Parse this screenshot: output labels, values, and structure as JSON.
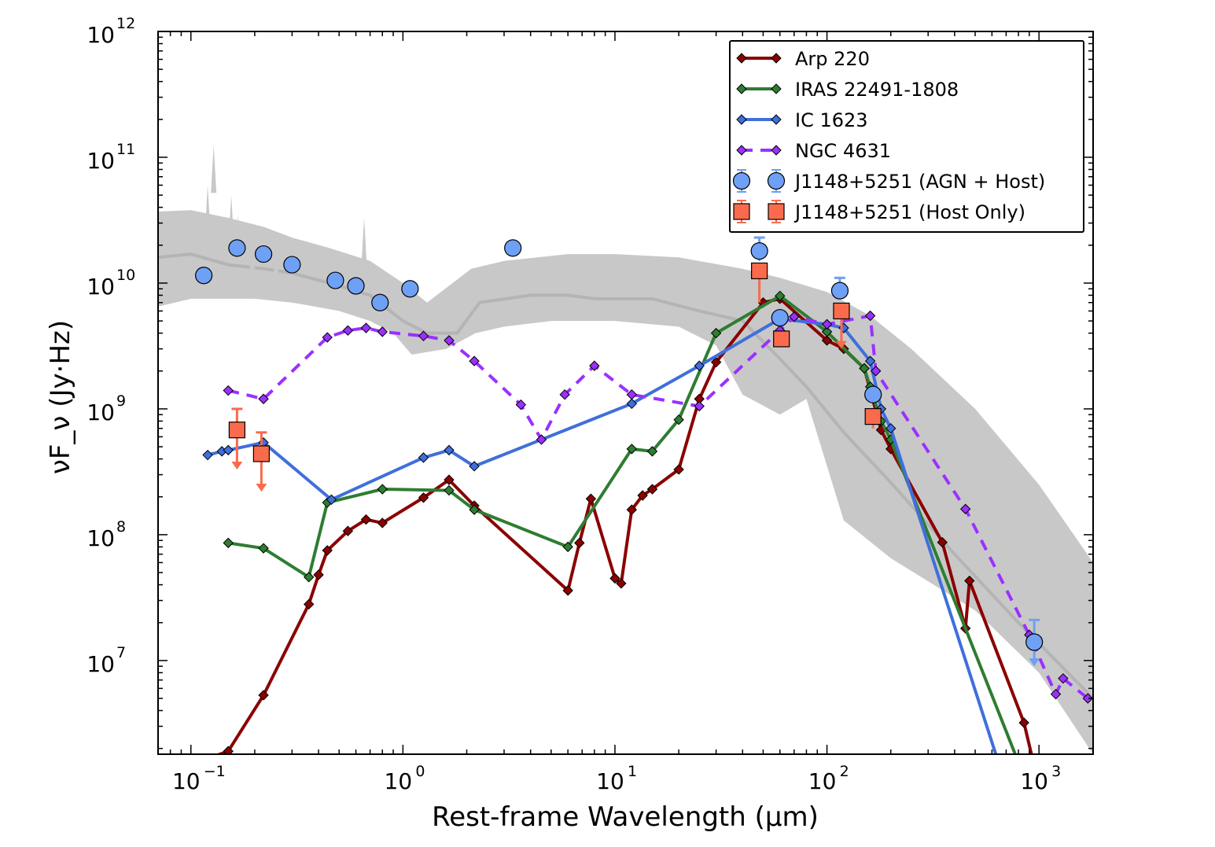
{
  "chart_data": {
    "type": "line",
    "xlabel": "Rest-frame Wavelength (μm)",
    "ylabel": "νF_ν (Jy·Hz)",
    "xscale": "log",
    "yscale": "log",
    "xlim": [
      0.07,
      1800
    ],
    "ylim": [
      1800000.0,
      1000000000000.0
    ],
    "x_ticks": [
      {
        "value": 0.1,
        "base": "10",
        "exp": "−1"
      },
      {
        "value": 1,
        "base": "10",
        "exp": "0"
      },
      {
        "value": 10,
        "base": "10",
        "exp": "1"
      },
      {
        "value": 100,
        "base": "10",
        "exp": "2"
      },
      {
        "value": 1000,
        "base": "10",
        "exp": "3"
      }
    ],
    "y_ticks": [
      {
        "value": 10000000.0,
        "base": "10",
        "exp": "7"
      },
      {
        "value": 100000000.0,
        "base": "10",
        "exp": "8"
      },
      {
        "value": 1000000000.0,
        "base": "10",
        "exp": "9"
      },
      {
        "value": 10000000000.0,
        "base": "10",
        "exp": "10"
      },
      {
        "value": 100000000000.0,
        "base": "10",
        "exp": "11"
      },
      {
        "value": 1000000000000.0,
        "base": "10",
        "exp": "12"
      }
    ],
    "legend_position": "top-right",
    "template": {
      "color": "#c8c8c8",
      "line_color": "#b4b4b4",
      "median": [
        [
          0.07,
          16000000000.0
        ],
        [
          0.1,
          17000000000.0
        ],
        [
          0.15,
          14000000000.0
        ],
        [
          0.22,
          13000000000.0
        ],
        [
          0.3,
          12000000000.0
        ],
        [
          0.45,
          10000000000.0
        ],
        [
          0.7,
          8000000000.0
        ],
        [
          1.0,
          5000000000.0
        ],
        [
          1.3,
          4000000000.0
        ],
        [
          1.8,
          4000000000.0
        ],
        [
          2.3,
          7000000000.0
        ],
        [
          4,
          8000000000.0
        ],
        [
          6,
          8000000000.0
        ],
        [
          8,
          7500000000.0
        ],
        [
          15,
          7500000000.0
        ],
        [
          25,
          6000000000.0
        ],
        [
          40,
          5000000000.0
        ],
        [
          60,
          2500000000.0
        ],
        [
          80,
          1500000000.0
        ],
        [
          120,
          650000000.0
        ],
        [
          200,
          260000000.0
        ],
        [
          400,
          70000000.0
        ],
        [
          800,
          20000000.0
        ],
        [
          1800,
          5000000.0
        ]
      ],
      "upper": [
        [
          0.07,
          37000000000.0
        ],
        [
          0.1,
          38000000000.0
        ],
        [
          0.15,
          33000000000.0
        ],
        [
          0.22,
          28000000000.0
        ],
        [
          0.3,
          23000000000.0
        ],
        [
          0.45,
          19000000000.0
        ],
        [
          0.7,
          15000000000.0
        ],
        [
          1.0,
          10000000000.0
        ],
        [
          1.3,
          7000000000.0
        ],
        [
          2.1,
          13000000000.0
        ],
        [
          3,
          15000000000.0
        ],
        [
          6,
          17000000000.0
        ],
        [
          10,
          17000000000.0
        ],
        [
          20,
          16000000000.0
        ],
        [
          40,
          13000000000.0
        ],
        [
          60,
          11000000000.0
        ],
        [
          100,
          8500000000.0
        ],
        [
          160,
          5500000000.0
        ],
        [
          250,
          3000000000.0
        ],
        [
          500,
          1000000000.0
        ],
        [
          1000,
          250000000.0
        ],
        [
          1800,
          60000000.0
        ]
      ],
      "lower": [
        [
          1800,
          1800000.0
        ],
        [
          1000,
          8000000.0
        ],
        [
          500,
          25000000.0
        ],
        [
          200,
          65000000.0
        ],
        [
          120,
          130000000.0
        ],
        [
          80,
          1200000000.0
        ],
        [
          60,
          900000000.0
        ],
        [
          40,
          1300000000.0
        ],
        [
          30,
          3200000000.0
        ],
        [
          20,
          4500000000.0
        ],
        [
          10,
          5000000000.0
        ],
        [
          5,
          5000000000.0
        ],
        [
          3,
          4500000000.0
        ],
        [
          2.2,
          4000000000.0
        ],
        [
          1.6,
          3000000000.0
        ],
        [
          1.1,
          2700000000.0
        ],
        [
          0.9,
          4000000000.0
        ],
        [
          0.7,
          5000000000.0
        ],
        [
          0.5,
          6000000000.0
        ],
        [
          0.3,
          7000000000.0
        ],
        [
          0.2,
          7500000000.0
        ],
        [
          0.1,
          7500000000.0
        ],
        [
          0.07,
          6500000000.0
        ]
      ],
      "spikes": [
        [
          0.12,
          60000000000.0
        ],
        [
          0.128,
          125000000000.0
        ],
        [
          0.155,
          50000000000.0
        ],
        [
          0.166,
          35000000000.0
        ],
        [
          0.195,
          29000000000.0
        ],
        [
          0.252,
          26000000000.0
        ],
        [
          0.486,
          18000000000.0
        ],
        [
          0.656,
          33000000000.0
        ]
      ]
    },
    "series": [
      {
        "name": "Arp 220",
        "color": "#8b0000",
        "dashed": false,
        "points": [
          [
            0.09,
            1400000.0
          ],
          [
            0.15,
            1900000.0
          ],
          [
            0.22,
            5300000.0
          ],
          [
            0.36,
            28000000.0
          ],
          [
            0.4,
            48000000.0
          ],
          [
            0.44,
            75000000.0
          ],
          [
            0.55,
            107000000.0
          ],
          [
            0.67,
            132000000.0
          ],
          [
            0.8,
            124000000.0
          ],
          [
            1.25,
            197000000.0
          ],
          [
            1.65,
            273000000.0
          ],
          [
            2.17,
            170000000.0
          ],
          [
            6.0,
            36000000.0
          ],
          [
            6.8,
            86000000.0
          ],
          [
            7.7,
            193000000.0
          ],
          [
            10,
            45000000.0
          ],
          [
            10.7,
            41000000.0
          ],
          [
            12,
            158000000.0
          ],
          [
            13.5,
            205000000.0
          ],
          [
            15,
            230000000.0
          ],
          [
            20,
            330000000.0
          ],
          [
            25,
            1200000000.0
          ],
          [
            30,
            2350000000.0
          ],
          [
            50,
            7000000000.0
          ],
          [
            60,
            7500000000.0
          ],
          [
            100,
            3500000000.0
          ],
          [
            120,
            3000000000.0
          ],
          [
            150,
            2100000000.0
          ],
          [
            180,
            680000000.0
          ],
          [
            200,
            480000000.0
          ],
          [
            350,
            87000000.0
          ],
          [
            450,
            18000000.0
          ],
          [
            470,
            43000000.0
          ],
          [
            850,
            3200000.0
          ],
          [
            1000,
            1000000.0
          ]
        ]
      },
      {
        "name": "IRAS 22491-1808",
        "color": "#2e7d32",
        "dashed": false,
        "points": [
          [
            0.15,
            86000000.0
          ],
          [
            0.22,
            78000000.0
          ],
          [
            0.36,
            46000000.0
          ],
          [
            0.44,
            180000000.0
          ],
          [
            0.8,
            230000000.0
          ],
          [
            1.65,
            225000000.0
          ],
          [
            2.17,
            158000000.0
          ],
          [
            6.0,
            80000000.0
          ],
          [
            12,
            480000000.0
          ],
          [
            15,
            460000000.0
          ],
          [
            20,
            820000000.0
          ],
          [
            30,
            4000000000.0
          ],
          [
            60,
            7900000000.0
          ],
          [
            100,
            4100000000.0
          ],
          [
            150,
            2100000000.0
          ],
          [
            160,
            1500000000.0
          ],
          [
            180,
            800000000.0
          ],
          [
            200,
            570000000.0
          ],
          [
            850,
            1200000.0
          ]
        ]
      },
      {
        "name": "IC 1623",
        "color": "#3f6fdc",
        "dashed": false,
        "points": [
          [
            0.12,
            430000000.0
          ],
          [
            0.14,
            460000000.0
          ],
          [
            0.15,
            470000000.0
          ],
          [
            0.22,
            540000000.0
          ],
          [
            0.46,
            190000000.0
          ],
          [
            1.25,
            410000000.0
          ],
          [
            1.65,
            470000000.0
          ],
          [
            2.17,
            350000000.0
          ],
          [
            12,
            1100000000.0
          ],
          [
            25,
            2200000000.0
          ],
          [
            60,
            5200000000.0
          ],
          [
            100,
            4700000000.0
          ],
          [
            120,
            4400000000.0
          ],
          [
            160,
            2400000000.0
          ],
          [
            180,
            1000000000.0
          ],
          [
            200,
            700000000.0
          ],
          [
            700,
            1000000.0
          ]
        ]
      },
      {
        "name": "NGC 4631",
        "color": "#9b30ff",
        "dashed": true,
        "points": [
          [
            0.15,
            1400000000.0
          ],
          [
            0.22,
            1200000000.0
          ],
          [
            0.44,
            3700000000.0
          ],
          [
            0.55,
            4200000000.0
          ],
          [
            0.67,
            4400000000.0
          ],
          [
            0.8,
            4100000000.0
          ],
          [
            1.25,
            3800000000.0
          ],
          [
            1.65,
            3500000000.0
          ],
          [
            2.17,
            2400000000.0
          ],
          [
            3.6,
            1080000000.0
          ],
          [
            4.5,
            570000000.0
          ],
          [
            5.8,
            1300000000.0
          ],
          [
            8,
            2200000000.0
          ],
          [
            12,
            1300000000.0
          ],
          [
            25,
            1050000000.0
          ],
          [
            60,
            4200000000.0
          ],
          [
            70,
            5400000000.0
          ],
          [
            100,
            4700000000.0
          ],
          [
            160,
            5500000000.0
          ],
          [
            170,
            2000000000.0
          ],
          [
            450,
            160000000.0
          ],
          [
            900,
            16000000.0
          ],
          [
            1200,
            5400000.0
          ],
          [
            1300,
            7200000.0
          ],
          [
            1700,
            5000000.0
          ]
        ]
      }
    ],
    "agn_host": {
      "name": "J1148+5251 (AGN + Host)",
      "color": "#6ea0f5",
      "points": [
        [
          0.115,
          11500000000.0
        ],
        [
          0.165,
          19000000000.0
        ],
        [
          0.22,
          17000000000.0
        ],
        [
          0.3,
          14000000000.0
        ],
        [
          0.48,
          10500000000.0
        ],
        [
          0.6,
          9500000000.0
        ],
        [
          0.78,
          7000000000.0
        ],
        [
          1.08,
          9000000000.0
        ],
        [
          3.3,
          19000000000.0
        ],
        [
          48,
          18000000000.0
        ],
        [
          60,
          5300000000.0
        ],
        [
          115,
          8700000000.0
        ],
        [
          165,
          1300000000.0
        ],
        [
          950,
          14000000.0
        ]
      ],
      "errors": [
        [
          48,
          23000000000.0,
          15000000000.0
        ],
        [
          115,
          11000000000.0,
          7500000000.0
        ]
      ],
      "upper_limits": [
        [
          950,
          21000000.0,
          9000000.0
        ]
      ]
    },
    "host_only": {
      "name": "J1148+5251 (Host Only)",
      "color": "#fa6a4c",
      "points": [
        [
          0.165,
          680000000.0
        ],
        [
          0.215,
          440000000.0
        ],
        [
          48,
          12500000000.0
        ],
        [
          61,
          3600000000.0
        ],
        [
          117,
          6000000000.0
        ],
        [
          165,
          870000000.0
        ]
      ],
      "errors": [
        [
          48,
          12500000000.0,
          7000000000.0
        ],
        [
          165,
          870000000.0,
          700000000.0
        ]
      ],
      "upper_limits": [
        [
          0.165,
          1000000000.0,
          330000000.0
        ],
        [
          0.215,
          650000000.0,
          220000000.0
        ],
        [
          117,
          6000000000.0,
          3000000000.0
        ]
      ]
    }
  }
}
